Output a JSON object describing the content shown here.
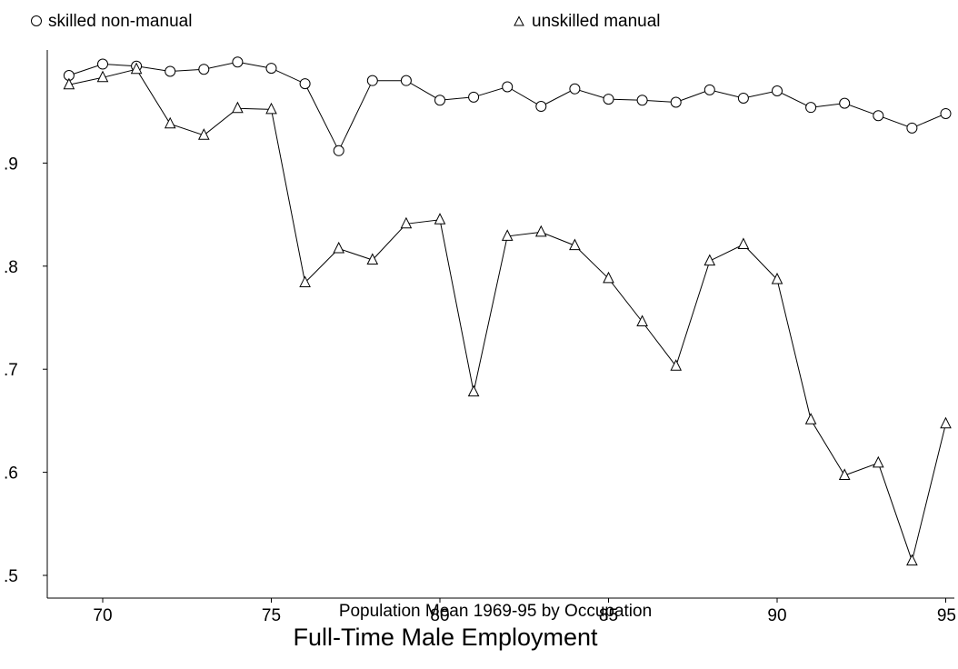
{
  "chart_data": {
    "type": "line",
    "title": "Full-Time Male Employment",
    "subtitle": "Population Mean 1969-95 by Occupation",
    "xlabel": "",
    "ylabel": "",
    "xlim": [
      68.2,
      95.3
    ],
    "ylim": [
      0.475,
      1.04
    ],
    "x_ticks": [
      70,
      75,
      80,
      85,
      90,
      95
    ],
    "y_ticks": [
      0.5,
      0.6,
      0.7,
      0.8,
      0.9
    ],
    "y_tick_labels": [
      ".5",
      ".6",
      ".7",
      ".8",
      ".9"
    ],
    "grid": false,
    "legend_position": "top",
    "x": [
      69,
      70,
      71,
      72,
      73,
      74,
      75,
      76,
      77,
      78,
      79,
      80,
      81,
      82,
      83,
      84,
      85,
      86,
      87,
      88,
      89,
      90,
      91,
      92,
      93,
      94,
      95
    ],
    "series": [
      {
        "name": "skilled non-manual",
        "marker": "circle",
        "values": [
          0.985,
          0.996,
          0.994,
          0.989,
          0.991,
          0.998,
          0.992,
          0.977,
          0.912,
          0.98,
          0.98,
          0.961,
          0.964,
          0.974,
          0.955,
          0.972,
          0.962,
          0.961,
          0.959,
          0.971,
          0.963,
          0.97,
          0.954,
          0.958,
          0.946,
          0.934,
          0.948
        ]
      },
      {
        "name": "unskilled manual",
        "marker": "triangle",
        "values": [
          0.976,
          0.983,
          0.991,
          0.938,
          0.927,
          0.953,
          0.952,
          0.784,
          0.817,
          0.806,
          0.841,
          0.845,
          0.678,
          0.829,
          0.833,
          0.82,
          0.788,
          0.746,
          0.703,
          0.805,
          0.821,
          0.787,
          0.651,
          0.597,
          0.609,
          0.514,
          0.647
        ]
      }
    ]
  }
}
